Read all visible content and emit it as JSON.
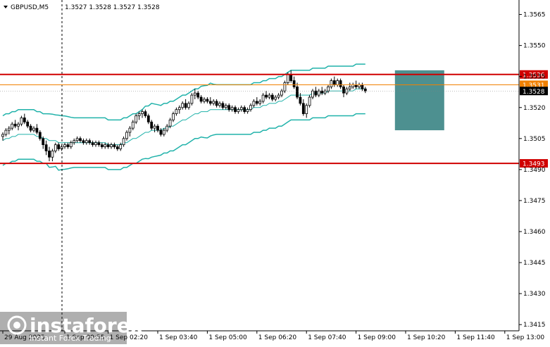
{
  "header": {
    "symbol": "GBPUSD,M5",
    "ohlc": "1.3527 1.3528 1.3527 1.3528"
  },
  "watermark": {
    "brand": "instaforex",
    "tagline": "Instant Forex Trading"
  },
  "colors": {
    "candle": "#000000",
    "bollinger": "#20b2aa",
    "level_line": "#d00000",
    "current_price_line": "#808080",
    "zone_fill": "#2e7d7d",
    "bid_line": "#f08000"
  },
  "chart_data": {
    "type": "candlestick",
    "ylim": [
      1.3412,
      1.3572
    ],
    "y_ticks": [
      "1.3565",
      "1.3550",
      "1.3535",
      "1.3520",
      "1.3505",
      "1.3490",
      "1.3475",
      "1.3460",
      "1.3445",
      "1.3430",
      "1.3415"
    ],
    "y_tick_values": [
      1.3565,
      1.355,
      1.3535,
      1.352,
      1.3505,
      1.349,
      1.3475,
      1.346,
      1.3445,
      1.343,
      1.3415
    ],
    "x_ticks": [
      "29 Aug 2025",
      "1 Sep 00:55",
      "1 Sep 02:20",
      "1 Sep 03:40",
      "1 Sep 05:00",
      "1 Sep 06:20",
      "1 Sep 07:40",
      "1 Sep 09:00",
      "1 Sep 10:20",
      "1 Sep 11:40",
      "1 Sep 13:00"
    ],
    "x_tick_index": [
      0,
      20,
      34,
      50,
      66,
      82,
      98,
      114,
      130,
      146,
      162
    ],
    "levels": [
      {
        "label": "1.3536",
        "value": 1.3536,
        "style": "resistance"
      },
      {
        "label": "1.3493",
        "value": 1.3493,
        "style": "support"
      }
    ],
    "current_price": {
      "label": "1.3528",
      "value": 1.3528
    },
    "bid_level": {
      "label": "1.3531",
      "value": 1.3531
    },
    "zone": {
      "start_index": 127,
      "end_index": 142,
      "low": 1.3509,
      "high": 1.3538
    },
    "candles": [
      [
        1.3506,
        1.3508,
        1.3504,
        1.3507
      ],
      [
        1.3507,
        1.351,
        1.3506,
        1.3509
      ],
      [
        1.3509,
        1.3511,
        1.3507,
        1.351
      ],
      [
        1.351,
        1.3513,
        1.3509,
        1.3512
      ],
      [
        1.3512,
        1.3514,
        1.351,
        1.3511
      ],
      [
        1.3511,
        1.3513,
        1.3509,
        1.3512
      ],
      [
        1.3512,
        1.3516,
        1.3511,
        1.3515
      ],
      [
        1.3515,
        1.3517,
        1.3512,
        1.3513
      ],
      [
        1.3513,
        1.3514,
        1.351,
        1.3511
      ],
      [
        1.3511,
        1.3512,
        1.3508,
        1.3509
      ],
      [
        1.3509,
        1.3511,
        1.3508,
        1.351
      ],
      [
        1.351,
        1.3512,
        1.3507,
        1.3508
      ],
      [
        1.3508,
        1.3509,
        1.3504,
        1.3505
      ],
      [
        1.3505,
        1.3506,
        1.35,
        1.3502
      ],
      [
        1.3502,
        1.3504,
        1.3497,
        1.3499
      ],
      [
        1.3499,
        1.3501,
        1.3494,
        1.3496
      ],
      [
        1.3496,
        1.35,
        1.3494,
        1.3499
      ],
      [
        1.3499,
        1.3503,
        1.3498,
        1.3502
      ],
      [
        1.3502,
        1.3503,
        1.3499,
        1.35
      ],
      [
        1.35,
        1.3502,
        1.3499,
        1.3501
      ],
      [
        1.3501,
        1.3503,
        1.35,
        1.3502
      ],
      [
        1.3502,
        1.3503,
        1.35,
        1.3501
      ],
      [
        1.3501,
        1.3504,
        1.35,
        1.3503
      ],
      [
        1.3503,
        1.3505,
        1.3502,
        1.3504
      ],
      [
        1.3504,
        1.3506,
        1.3503,
        1.3505
      ],
      [
        1.3505,
        1.3506,
        1.3503,
        1.3504
      ],
      [
        1.3504,
        1.3505,
        1.3502,
        1.3503
      ],
      [
        1.3503,
        1.3505,
        1.3502,
        1.3504
      ],
      [
        1.3504,
        1.3505,
        1.3502,
        1.3503
      ],
      [
        1.3503,
        1.3504,
        1.3501,
        1.3502
      ],
      [
        1.3502,
        1.3504,
        1.3501,
        1.3503
      ],
      [
        1.3503,
        1.3504,
        1.3501,
        1.3502
      ],
      [
        1.3502,
        1.3503,
        1.35,
        1.3501
      ],
      [
        1.3501,
        1.3503,
        1.35,
        1.3502
      ],
      [
        1.3502,
        1.3503,
        1.35,
        1.3501
      ],
      [
        1.3501,
        1.3503,
        1.35,
        1.3502
      ],
      [
        1.3502,
        1.3503,
        1.35,
        1.3501
      ],
      [
        1.3501,
        1.3502,
        1.3499,
        1.35
      ],
      [
        1.35,
        1.3503,
        1.3499,
        1.3502
      ],
      [
        1.3502,
        1.3506,
        1.3501,
        1.3505
      ],
      [
        1.3505,
        1.3509,
        1.3504,
        1.3508
      ],
      [
        1.3508,
        1.3511,
        1.3506,
        1.351
      ],
      [
        1.351,
        1.3514,
        1.3509,
        1.3513
      ],
      [
        1.3513,
        1.3517,
        1.3512,
        1.3516
      ],
      [
        1.3516,
        1.3518,
        1.3514,
        1.3517
      ],
      [
        1.3517,
        1.3519,
        1.3515,
        1.3518
      ],
      [
        1.3518,
        1.3519,
        1.3515,
        1.3516
      ],
      [
        1.3516,
        1.3517,
        1.3512,
        1.3513
      ],
      [
        1.3513,
        1.3514,
        1.3509,
        1.351
      ],
      [
        1.351,
        1.3512,
        1.3508,
        1.3511
      ],
      [
        1.3511,
        1.3512,
        1.3508,
        1.3509
      ],
      [
        1.3509,
        1.351,
        1.3506,
        1.3507
      ],
      [
        1.3507,
        1.351,
        1.3506,
        1.3509
      ],
      [
        1.3509,
        1.3512,
        1.3508,
        1.3511
      ],
      [
        1.3511,
        1.3515,
        1.351,
        1.3514
      ],
      [
        1.3514,
        1.3518,
        1.3513,
        1.3517
      ],
      [
        1.3517,
        1.352,
        1.3516,
        1.3519
      ],
      [
        1.3519,
        1.3521,
        1.3517,
        1.352
      ],
      [
        1.352,
        1.3523,
        1.3519,
        1.3522
      ],
      [
        1.3522,
        1.3524,
        1.3519,
        1.352
      ],
      [
        1.352,
        1.3523,
        1.3519,
        1.3522
      ],
      [
        1.3522,
        1.3527,
        1.3521,
        1.3526
      ],
      [
        1.3526,
        1.3529,
        1.3524,
        1.3527
      ],
      [
        1.3527,
        1.3528,
        1.3524,
        1.3525
      ],
      [
        1.3525,
        1.3526,
        1.3522,
        1.3523
      ],
      [
        1.3523,
        1.3525,
        1.3522,
        1.3524
      ],
      [
        1.3524,
        1.3525,
        1.3522,
        1.3523
      ],
      [
        1.3523,
        1.3525,
        1.3521,
        1.3522
      ],
      [
        1.3522,
        1.3524,
        1.3521,
        1.3523
      ],
      [
        1.3523,
        1.3524,
        1.352,
        1.3521
      ],
      [
        1.3521,
        1.3523,
        1.352,
        1.3522
      ],
      [
        1.3522,
        1.3523,
        1.3519,
        1.352
      ],
      [
        1.352,
        1.3522,
        1.3519,
        1.3521
      ],
      [
        1.3521,
        1.3522,
        1.3518,
        1.3519
      ],
      [
        1.3519,
        1.3521,
        1.3518,
        1.352
      ],
      [
        1.352,
        1.3521,
        1.3517,
        1.3518
      ],
      [
        1.3518,
        1.352,
        1.3517,
        1.3519
      ],
      [
        1.3519,
        1.3521,
        1.3518,
        1.352
      ],
      [
        1.352,
        1.3521,
        1.3517,
        1.3518
      ],
      [
        1.3518,
        1.352,
        1.3517,
        1.3519
      ],
      [
        1.3519,
        1.3522,
        1.3518,
        1.3521
      ],
      [
        1.3521,
        1.3524,
        1.352,
        1.3523
      ],
      [
        1.3523,
        1.3525,
        1.3521,
        1.3522
      ],
      [
        1.3522,
        1.3524,
        1.3521,
        1.3523
      ],
      [
        1.3523,
        1.3527,
        1.3522,
        1.3526
      ],
      [
        1.3526,
        1.3528,
        1.3524,
        1.3525
      ],
      [
        1.3525,
        1.3527,
        1.3524,
        1.3526
      ],
      [
        1.3526,
        1.3527,
        1.3523,
        1.3524
      ],
      [
        1.3524,
        1.3526,
        1.3523,
        1.3525
      ],
      [
        1.3525,
        1.3527,
        1.3524,
        1.3526
      ],
      [
        1.3526,
        1.3529,
        1.3525,
        1.3528
      ],
      [
        1.3528,
        1.3533,
        1.3527,
        1.3532
      ],
      [
        1.3532,
        1.3537,
        1.3531,
        1.3536
      ],
      [
        1.3536,
        1.3538,
        1.3532,
        1.3533
      ],
      [
        1.3533,
        1.3535,
        1.3529,
        1.353
      ],
      [
        1.353,
        1.3532,
        1.3524,
        1.3525
      ],
      [
        1.3525,
        1.3527,
        1.3521,
        1.3522
      ],
      [
        1.3522,
        1.3524,
        1.3516,
        1.3517
      ],
      [
        1.3517,
        1.3522,
        1.3515,
        1.3521
      ],
      [
        1.3521,
        1.3526,
        1.352,
        1.3525
      ],
      [
        1.3525,
        1.3529,
        1.3524,
        1.3528
      ],
      [
        1.3528,
        1.353,
        1.3525,
        1.3526
      ],
      [
        1.3526,
        1.3529,
        1.3525,
        1.3528
      ],
      [
        1.3528,
        1.353,
        1.3526,
        1.3527
      ],
      [
        1.3527,
        1.3529,
        1.3526,
        1.3528
      ],
      [
        1.3528,
        1.3531,
        1.3527,
        1.353
      ],
      [
        1.353,
        1.3534,
        1.3529,
        1.3533
      ],
      [
        1.3533,
        1.3535,
        1.353,
        1.3531
      ],
      [
        1.3531,
        1.3534,
        1.353,
        1.3533
      ],
      [
        1.3533,
        1.3534,
        1.3529,
        1.353
      ],
      [
        1.353,
        1.3531,
        1.3525,
        1.3527
      ],
      [
        1.3527,
        1.353,
        1.3526,
        1.3529
      ],
      [
        1.3529,
        1.3532,
        1.3528,
        1.353
      ],
      [
        1.353,
        1.3532,
        1.3529,
        1.3531
      ],
      [
        1.3531,
        1.3533,
        1.3529,
        1.353
      ],
      [
        1.353,
        1.3532,
        1.3529,
        1.3531
      ],
      [
        1.3531,
        1.3532,
        1.3528,
        1.3529
      ],
      [
        1.3529,
        1.353,
        1.3527,
        1.3528
      ]
    ],
    "bollinger": {
      "middle": [
        1.3504,
        1.3505,
        1.3505,
        1.3506,
        1.3506,
        1.3507,
        1.3507,
        1.3507,
        1.3507,
        1.3507,
        1.3507,
        1.3506,
        1.3506,
        1.3505,
        1.3505,
        1.3504,
        1.3504,
        1.3504,
        1.3503,
        1.3503,
        1.3503,
        1.3503,
        1.3503,
        1.3503,
        1.3503,
        1.3503,
        1.3503,
        1.3503,
        1.3503,
        1.3503,
        1.3503,
        1.3503,
        1.3503,
        1.3503,
        1.3502,
        1.3502,
        1.3502,
        1.3502,
        1.3502,
        1.3503,
        1.3503,
        1.3504,
        1.3505,
        1.3505,
        1.3506,
        1.3507,
        1.3508,
        1.3508,
        1.3509,
        1.3509,
        1.3509,
        1.3509,
        1.351,
        1.351,
        1.3511,
        1.3511,
        1.3512,
        1.3513,
        1.3514,
        1.3514,
        1.3515,
        1.3516,
        1.3517,
        1.3517,
        1.3518,
        1.3518,
        1.3518,
        1.3519,
        1.3519,
        1.3519,
        1.3519,
        1.3519,
        1.3519,
        1.3519,
        1.3519,
        1.3519,
        1.3519,
        1.3519,
        1.3519,
        1.3519,
        1.3519,
        1.352,
        1.352,
        1.352,
        1.3521,
        1.3521,
        1.3522,
        1.3522,
        1.3522,
        1.3523,
        1.3523,
        1.3524,
        1.3525,
        1.3526,
        1.3526,
        1.3526,
        1.3526,
        1.3526,
        1.3526,
        1.3526,
        1.3527,
        1.3527,
        1.3527,
        1.3527,
        1.3527,
        1.3528,
        1.3528,
        1.3528,
        1.3528,
        1.3528,
        1.3528,
        1.3528,
        1.3528,
        1.3528,
        1.3529,
        1.3529,
        1.3529,
        1.3529
      ]
    }
  }
}
